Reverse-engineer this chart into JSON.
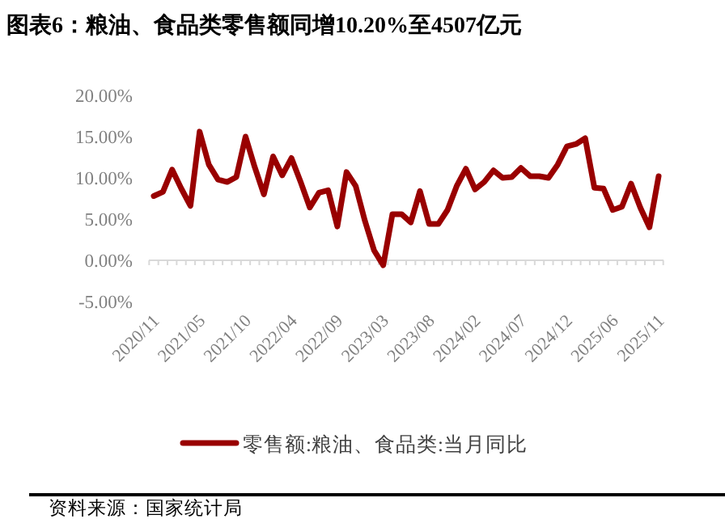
{
  "chart_data": {
    "type": "line",
    "title": "图表6：粮油、食品类零售额同增10.20%至4507亿元",
    "categories": [
      "2020/11",
      null,
      null,
      null,
      null,
      "2021/05",
      null,
      null,
      null,
      null,
      "2021/10",
      null,
      null,
      null,
      null,
      "2022/04",
      null,
      null,
      null,
      null,
      "2022/09",
      null,
      null,
      null,
      null,
      "2023/03",
      null,
      null,
      null,
      null,
      "2023/08",
      null,
      null,
      null,
      null,
      "2024/02",
      null,
      null,
      null,
      null,
      "2024/07",
      null,
      null,
      null,
      null,
      "2024/12",
      null,
      null,
      null,
      null,
      "2025/06",
      null,
      null,
      null,
      null,
      "2025/11"
    ],
    "series": [
      {
        "name": "零售额:粮油、食品类:当月同比",
        "color": "#990000",
        "values": [
          7.8,
          8.3,
          11.0,
          8.7,
          6.6,
          15.6,
          11.6,
          9.8,
          9.5,
          10.1,
          15.0,
          11.3,
          8.0,
          12.6,
          10.3,
          12.4,
          9.5,
          6.4,
          8.2,
          8.5,
          4.1,
          10.7,
          9.0,
          4.8,
          1.2,
          -0.6,
          5.6,
          5.6,
          4.6,
          8.4,
          4.4,
          4.4,
          6.1,
          9.0,
          11.1,
          8.6,
          9.5,
          10.9,
          10.0,
          10.1,
          11.2,
          10.2,
          10.2,
          10.0,
          11.6,
          13.8,
          14.1,
          14.8,
          8.8,
          8.7,
          6.1,
          6.5,
          9.3,
          6.4,
          4.0,
          10.2
        ]
      }
    ],
    "ylim": [
      -5,
      20
    ],
    "yticks": [
      {
        "value": -5,
        "label": "-5.00%"
      },
      {
        "value": 0,
        "label": "0.00%"
      },
      {
        "value": 5,
        "label": "5.00%"
      },
      {
        "value": 10,
        "label": "10.00%"
      },
      {
        "value": 15,
        "label": "15.00%"
      },
      {
        "value": 20,
        "label": "20.00%"
      }
    ],
    "legend": "bottom",
    "annotations": [
      "资料来源：国家统计局"
    ]
  }
}
